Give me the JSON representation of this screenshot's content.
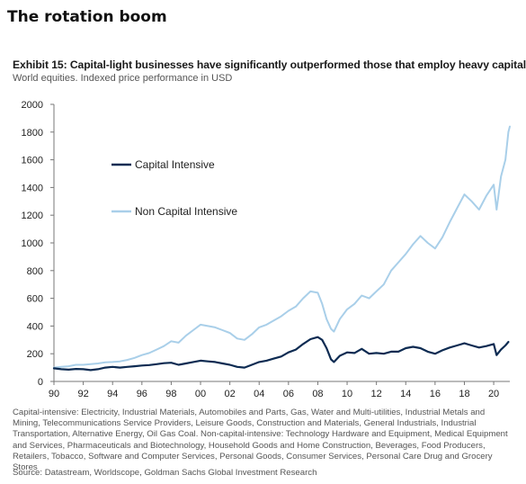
{
  "page": {
    "title": "The rotation boom"
  },
  "exhibit": {
    "title": "Exhibit 15: Capital-light businesses have significantly outperformed those that employ heavy capital",
    "subtitle": "World equities. Indexed price performance in USD",
    "footnote": "Capital-intensive: Electricity, Industrial Materials, Automobiles and Parts, Gas, Water and Multi-utilities, Industrial Metals and Mining, Telecommunications Service Providers, Leisure Goods, Construction and Materials, General Industrials, Industrial Transportation, Alternative Energy, Oil Gas Coal. Non-capital-intensive: Technology Hardware and Equipment, Medical Equipment and Services, Pharmaceuticals and Biotechnology, Household Goods and Home Construction, Beverages, Food Producers, Retailers, Tobacco, Software and Computer Services, Personal Goods, Consumer Services, Personal Care Drug and Grocery Stores",
    "source": "Source: Datastream, Worldscope, Goldman Sachs Global Investment Research"
  },
  "chart_data": {
    "type": "line",
    "title": "",
    "xlabel": "",
    "ylabel": "",
    "xlim": [
      1990,
      2021.1
    ],
    "ylim": [
      0,
      2000
    ],
    "grid": false,
    "legend_position": "upper-left",
    "x_tick_labels": [
      "90",
      "92",
      "94",
      "96",
      "98",
      "00",
      "02",
      "04",
      "06",
      "08",
      "10",
      "12",
      "14",
      "16",
      "18",
      "20"
    ],
    "x_tick_values": [
      1990,
      1992,
      1994,
      1996,
      1998,
      2000,
      2002,
      2004,
      2006,
      2008,
      2010,
      2012,
      2014,
      2016,
      2018,
      2020
    ],
    "y_tick_labels": [
      "0",
      "200",
      "400",
      "600",
      "800",
      "1000",
      "1200",
      "1400",
      "1600",
      "1800",
      "2000"
    ],
    "y_tick_values": [
      0,
      200,
      400,
      600,
      800,
      1000,
      1200,
      1400,
      1600,
      1800,
      2000
    ],
    "series": [
      {
        "name": "Capital Intensive",
        "color": "#0d2b52",
        "points": [
          [
            1990.0,
            95
          ],
          [
            1990.5,
            88
          ],
          [
            1991.0,
            85
          ],
          [
            1991.5,
            90
          ],
          [
            1992.0,
            88
          ],
          [
            1992.5,
            82
          ],
          [
            1993.0,
            88
          ],
          [
            1993.5,
            100
          ],
          [
            1994.0,
            105
          ],
          [
            1994.5,
            100
          ],
          [
            1995.0,
            105
          ],
          [
            1995.5,
            110
          ],
          [
            1996.0,
            115
          ],
          [
            1996.5,
            118
          ],
          [
            1997.0,
            125
          ],
          [
            1997.5,
            132
          ],
          [
            1998.0,
            135
          ],
          [
            1998.5,
            120
          ],
          [
            1999.0,
            130
          ],
          [
            1999.5,
            140
          ],
          [
            2000.0,
            150
          ],
          [
            2000.5,
            145
          ],
          [
            2001.0,
            140
          ],
          [
            2001.5,
            130
          ],
          [
            2002.0,
            120
          ],
          [
            2002.5,
            105
          ],
          [
            2003.0,
            100
          ],
          [
            2003.5,
            120
          ],
          [
            2004.0,
            140
          ],
          [
            2004.5,
            150
          ],
          [
            2005.0,
            165
          ],
          [
            2005.5,
            180
          ],
          [
            2006.0,
            210
          ],
          [
            2006.5,
            230
          ],
          [
            2007.0,
            270
          ],
          [
            2007.5,
            305
          ],
          [
            2008.0,
            320
          ],
          [
            2008.3,
            300
          ],
          [
            2008.6,
            240
          ],
          [
            2008.9,
            160
          ],
          [
            2009.1,
            140
          ],
          [
            2009.5,
            185
          ],
          [
            2010.0,
            210
          ],
          [
            2010.5,
            205
          ],
          [
            2011.0,
            235
          ],
          [
            2011.5,
            200
          ],
          [
            2012.0,
            205
          ],
          [
            2012.5,
            200
          ],
          [
            2013.0,
            215
          ],
          [
            2013.5,
            215
          ],
          [
            2014.0,
            240
          ],
          [
            2014.5,
            250
          ],
          [
            2015.0,
            240
          ],
          [
            2015.5,
            215
          ],
          [
            2016.0,
            200
          ],
          [
            2016.5,
            225
          ],
          [
            2017.0,
            245
          ],
          [
            2017.5,
            260
          ],
          [
            2018.0,
            275
          ],
          [
            2018.5,
            260
          ],
          [
            2019.0,
            245
          ],
          [
            2019.5,
            255
          ],
          [
            2020.0,
            270
          ],
          [
            2020.2,
            190
          ],
          [
            2020.5,
            230
          ],
          [
            2020.8,
            260
          ],
          [
            2021.0,
            285
          ]
        ]
      },
      {
        "name": "Non Capital Intensive",
        "color": "#a9cfe9",
        "points": [
          [
            1990.0,
            100
          ],
          [
            1990.5,
            105
          ],
          [
            1991.0,
            110
          ],
          [
            1991.5,
            120
          ],
          [
            1992.0,
            120
          ],
          [
            1992.5,
            125
          ],
          [
            1993.0,
            130
          ],
          [
            1993.5,
            138
          ],
          [
            1994.0,
            140
          ],
          [
            1994.5,
            145
          ],
          [
            1995.0,
            155
          ],
          [
            1995.5,
            170
          ],
          [
            1996.0,
            190
          ],
          [
            1996.5,
            205
          ],
          [
            1997.0,
            230
          ],
          [
            1997.5,
            255
          ],
          [
            1998.0,
            290
          ],
          [
            1998.5,
            280
          ],
          [
            1999.0,
            330
          ],
          [
            1999.5,
            370
          ],
          [
            2000.0,
            410
          ],
          [
            2000.5,
            400
          ],
          [
            2001.0,
            390
          ],
          [
            2001.5,
            370
          ],
          [
            2002.0,
            350
          ],
          [
            2002.5,
            310
          ],
          [
            2003.0,
            300
          ],
          [
            2003.5,
            340
          ],
          [
            2004.0,
            390
          ],
          [
            2004.5,
            410
          ],
          [
            2005.0,
            440
          ],
          [
            2005.5,
            470
          ],
          [
            2006.0,
            510
          ],
          [
            2006.5,
            540
          ],
          [
            2007.0,
            600
          ],
          [
            2007.5,
            650
          ],
          [
            2008.0,
            640
          ],
          [
            2008.3,
            560
          ],
          [
            2008.6,
            450
          ],
          [
            2008.9,
            380
          ],
          [
            2009.1,
            360
          ],
          [
            2009.5,
            450
          ],
          [
            2010.0,
            520
          ],
          [
            2010.5,
            560
          ],
          [
            2011.0,
            620
          ],
          [
            2011.5,
            600
          ],
          [
            2012.0,
            650
          ],
          [
            2012.5,
            700
          ],
          [
            2013.0,
            800
          ],
          [
            2013.5,
            860
          ],
          [
            2014.0,
            920
          ],
          [
            2014.5,
            990
          ],
          [
            2015.0,
            1050
          ],
          [
            2015.5,
            1000
          ],
          [
            2016.0,
            960
          ],
          [
            2016.5,
            1040
          ],
          [
            2017.0,
            1150
          ],
          [
            2017.5,
            1250
          ],
          [
            2018.0,
            1350
          ],
          [
            2018.5,
            1300
          ],
          [
            2019.0,
            1240
          ],
          [
            2019.5,
            1340
          ],
          [
            2020.0,
            1420
          ],
          [
            2020.2,
            1240
          ],
          [
            2020.5,
            1480
          ],
          [
            2020.8,
            1600
          ],
          [
            2021.0,
            1800
          ],
          [
            2021.1,
            1840
          ]
        ]
      }
    ]
  }
}
